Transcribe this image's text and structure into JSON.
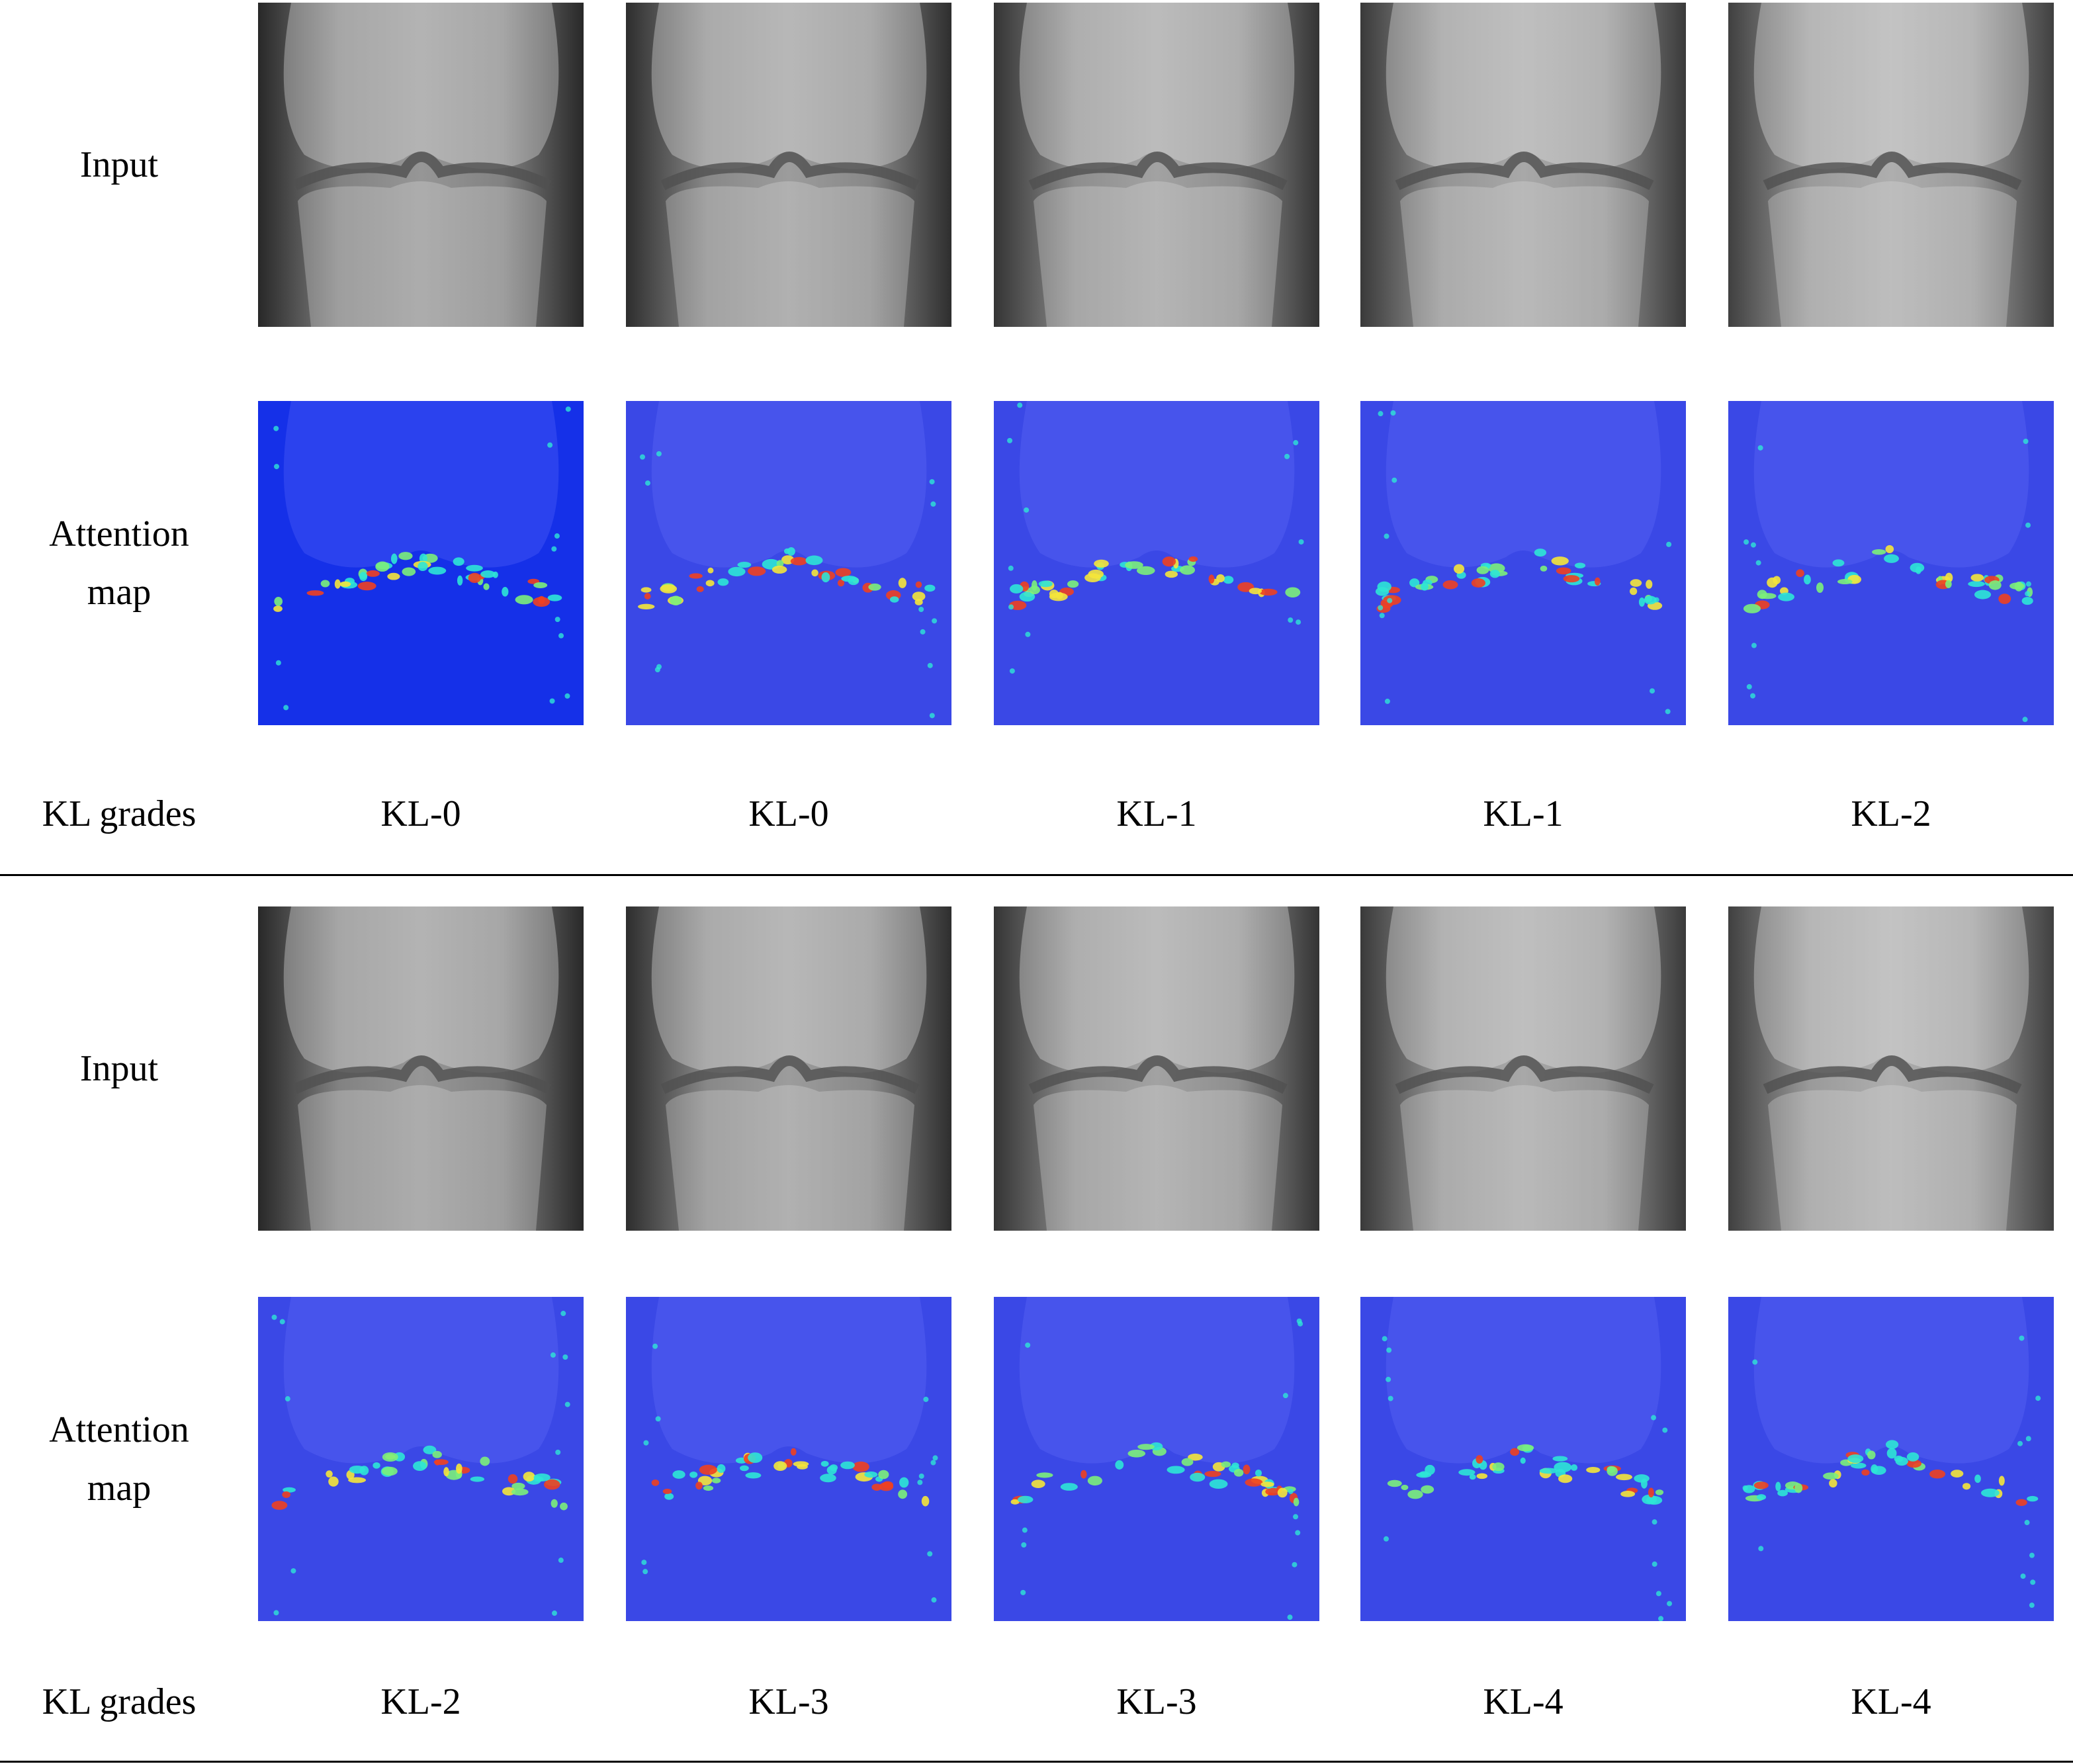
{
  "panels": [
    {
      "row_labels": {
        "input": "Input",
        "attention": "Attention map",
        "grades": "KL grades"
      },
      "grades": [
        "KL-0",
        "KL-0",
        "KL-1",
        "KL-1",
        "KL-2"
      ]
    },
    {
      "row_labels": {
        "input": "Input",
        "attention": "Attention map",
        "grades": "KL grades"
      },
      "grades": [
        "KL-2",
        "KL-3",
        "KL-3",
        "KL-4",
        "KL-4"
      ]
    }
  ]
}
